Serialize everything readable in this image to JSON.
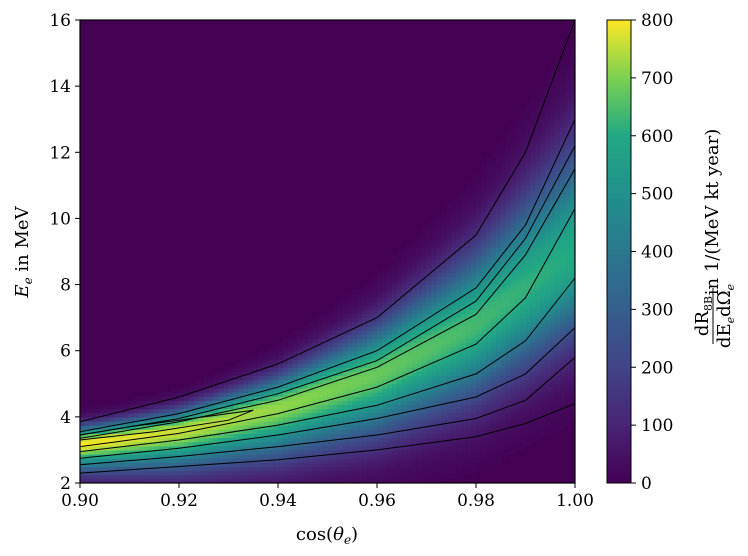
{
  "chart_data": {
    "type": "heatmap",
    "title": "",
    "xlabel": {
      "base": "cos(",
      "italic": "θ",
      "sub": "e",
      "tail": ")"
    },
    "ylabel": {
      "italic": "E",
      "sub": "e",
      "tail": " in MeV"
    },
    "xlim": [
      0.9,
      1.0
    ],
    "ylim": [
      2,
      16
    ],
    "x_ticks": [
      "0.90",
      "0.92",
      "0.94",
      "0.96",
      "0.98",
      "1.00"
    ],
    "y_ticks": [
      "2",
      "4",
      "6",
      "8",
      "10",
      "12",
      "14",
      "16"
    ],
    "colorbar": {
      "min": 0,
      "max": 800,
      "ticks": [
        "0",
        "100",
        "200",
        "300",
        "400",
        "500",
        "600",
        "700",
        "800"
      ],
      "label_numerator": "dR",
      "label_numerator_sub": "8B",
      "label_denominator": "dE",
      "label_denominator_sub1": "e",
      "label_denominator_mid": "dΩ",
      "label_denominator_sub2": "e",
      "label_units": "in 1/(MeV kt year)",
      "colormap": "viridis"
    },
    "peak_ridge": [
      {
        "x": 0.9,
        "y": 3.2
      },
      {
        "x": 0.92,
        "y": 3.6
      },
      {
        "x": 0.94,
        "y": 4.3
      },
      {
        "x": 0.96,
        "y": 5.3
      },
      {
        "x": 0.98,
        "y": 6.8
      },
      {
        "x": 1.0,
        "y": 9.0
      }
    ],
    "peak_value": 800,
    "contour_lines": [
      {
        "level": "outer",
        "points": [
          [
            0.9,
            3.85
          ],
          [
            0.92,
            4.6
          ],
          [
            0.94,
            5.6
          ],
          [
            0.96,
            7.0
          ],
          [
            0.98,
            9.5
          ],
          [
            0.99,
            12.0
          ],
          [
            1.0,
            16.0
          ]
        ]
      },
      {
        "level": "c2",
        "points": [
          [
            0.9,
            3.55
          ],
          [
            0.92,
            4.1
          ],
          [
            0.94,
            4.9
          ],
          [
            0.96,
            6.0
          ],
          [
            0.98,
            7.9
          ],
          [
            0.99,
            9.8
          ],
          [
            1.0,
            13.0
          ]
        ]
      },
      {
        "level": "c3",
        "points": [
          [
            0.9,
            3.45
          ],
          [
            0.92,
            3.95
          ],
          [
            0.94,
            4.7
          ],
          [
            0.96,
            5.7
          ],
          [
            0.98,
            7.5
          ],
          [
            0.99,
            9.4
          ],
          [
            1.0,
            12.2
          ]
        ]
      },
      {
        "level": "c4",
        "points": [
          [
            0.9,
            3.35
          ],
          [
            0.92,
            3.85
          ],
          [
            0.94,
            4.5
          ],
          [
            0.96,
            5.5
          ],
          [
            0.98,
            7.1
          ],
          [
            0.99,
            8.9
          ],
          [
            1.0,
            11.5
          ]
        ]
      },
      {
        "level": "c5",
        "points": [
          [
            0.9,
            3.1
          ],
          [
            0.92,
            3.5
          ],
          [
            0.94,
            4.1
          ],
          [
            0.96,
            4.9
          ],
          [
            0.98,
            6.2
          ],
          [
            0.99,
            7.6
          ],
          [
            1.0,
            10.3
          ]
        ]
      },
      {
        "level": "c6",
        "points": [
          [
            0.9,
            2.95
          ],
          [
            0.92,
            3.3
          ],
          [
            0.94,
            3.75
          ],
          [
            0.96,
            4.35
          ],
          [
            0.98,
            5.3
          ],
          [
            0.99,
            6.3
          ],
          [
            1.0,
            8.2
          ]
        ]
      },
      {
        "level": "c7",
        "points": [
          [
            0.9,
            2.75
          ],
          [
            0.92,
            3.05
          ],
          [
            0.94,
            3.45
          ],
          [
            0.96,
            3.95
          ],
          [
            0.98,
            4.6
          ],
          [
            0.99,
            5.3
          ],
          [
            1.0,
            6.7
          ]
        ]
      },
      {
        "level": "c8",
        "points": [
          [
            0.9,
            2.55
          ],
          [
            0.92,
            2.8
          ],
          [
            0.94,
            3.1
          ],
          [
            0.96,
            3.45
          ],
          [
            0.98,
            3.95
          ],
          [
            0.99,
            4.5
          ],
          [
            1.0,
            5.8
          ]
        ]
      },
      {
        "level": "c9",
        "points": [
          [
            0.9,
            2.3
          ],
          [
            0.92,
            2.5
          ],
          [
            0.94,
            2.7
          ],
          [
            0.96,
            3.0
          ],
          [
            0.98,
            3.4
          ],
          [
            0.99,
            3.8
          ],
          [
            1.0,
            4.4
          ]
        ]
      },
      {
        "level": "peak-loop",
        "points": [
          [
            0.9,
            3.3
          ],
          [
            0.915,
            3.55
          ],
          [
            0.93,
            3.9
          ],
          [
            0.935,
            4.2
          ],
          [
            0.925,
            4.0
          ],
          [
            0.91,
            3.7
          ],
          [
            0.9,
            3.45
          ]
        ]
      }
    ]
  }
}
